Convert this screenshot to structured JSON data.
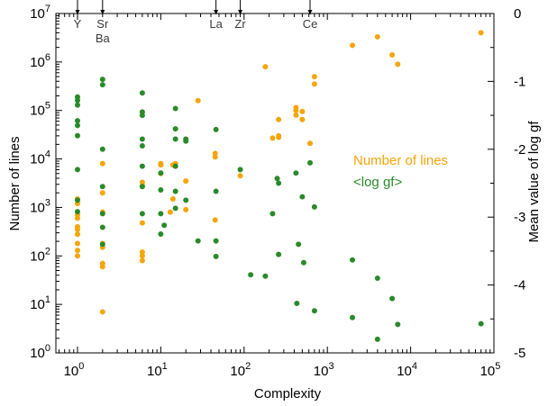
{
  "chart_data": {
    "type": "scatter",
    "xlabel": "Complexity",
    "ylabel_left": "Number of lines",
    "ylabel_right": "Mean value of log gf",
    "x_scale": "log",
    "y_left_scale": "log",
    "xlim": [
      0.55,
      100000
    ],
    "ylim_left": [
      1,
      10000000
    ],
    "ylim_right": [
      -5,
      0
    ],
    "x_ticks": [
      {
        "v": 1,
        "b": "10",
        "e": "0"
      },
      {
        "v": 10,
        "b": "10",
        "e": "1"
      },
      {
        "v": 100,
        "b": "10",
        "e": "2"
      },
      {
        "v": 1000,
        "b": "10",
        "e": "3"
      },
      {
        "v": 10000,
        "b": "10",
        "e": "4"
      },
      {
        "v": 100000,
        "b": "10",
        "e": "5"
      }
    ],
    "y_left_ticks": [
      {
        "v": 1,
        "b": "10",
        "e": "0"
      },
      {
        "v": 10,
        "b": "10",
        "e": "1"
      },
      {
        "v": 100,
        "b": "10",
        "e": "2"
      },
      {
        "v": 1000,
        "b": "10",
        "e": "3"
      },
      {
        "v": 10000,
        "b": "10",
        "e": "4"
      },
      {
        "v": 100000,
        "b": "10",
        "e": "5"
      },
      {
        "v": 1000000,
        "b": "10",
        "e": "6"
      },
      {
        "v": 10000000,
        "b": "10",
        "e": "7"
      }
    ],
    "y_right_ticks": [
      "0",
      "-1",
      "-2",
      "-3",
      "-4",
      "-5"
    ],
    "element_markers": [
      {
        "label": "Y",
        "x": 1
      },
      {
        "label": "Sr",
        "x": 2
      },
      {
        "label": "Ba",
        "x": 2
      },
      {
        "label": "La",
        "x": 46
      },
      {
        "label": "Zr",
        "x": 90
      },
      {
        "label": "Ce",
        "x": 620
      }
    ],
    "legend_position": "right",
    "series": [
      {
        "name": "Number of lines",
        "color": "#f5a50a",
        "axis": "left",
        "points": [
          [
            1,
            100
          ],
          [
            1,
            130
          ],
          [
            1,
            180
          ],
          [
            1,
            280
          ],
          [
            1,
            350
          ],
          [
            1,
            400
          ],
          [
            1,
            600
          ],
          [
            1,
            700
          ],
          [
            1,
            1200
          ],
          [
            1,
            1500
          ],
          [
            2,
            7
          ],
          [
            2,
            60
          ],
          [
            2,
            70
          ],
          [
            2,
            150
          ],
          [
            2,
            180
          ],
          [
            2,
            800
          ],
          [
            2,
            2000
          ],
          [
            2,
            8000
          ],
          [
            6,
            80
          ],
          [
            6,
            100
          ],
          [
            6,
            120
          ],
          [
            6,
            480
          ],
          [
            6,
            2800
          ],
          [
            6,
            3300
          ],
          [
            10,
            5000
          ],
          [
            10,
            7500
          ],
          [
            10,
            8000
          ],
          [
            13,
            800
          ],
          [
            14,
            1500
          ],
          [
            14,
            7500
          ],
          [
            15,
            8000
          ],
          [
            20,
            900
          ],
          [
            20,
            3500
          ],
          [
            28,
            160000
          ],
          [
            45,
            550
          ],
          [
            45,
            11000
          ],
          [
            45,
            13000
          ],
          [
            90,
            4500
          ],
          [
            180,
            800000
          ],
          [
            220,
            27000
          ],
          [
            260,
            28000
          ],
          [
            260,
            30000
          ],
          [
            260,
            65000
          ],
          [
            420,
            80000
          ],
          [
            420,
            100000
          ],
          [
            420,
            115000
          ],
          [
            500,
            95000
          ],
          [
            500,
            65000
          ],
          [
            620,
            21000
          ],
          [
            700,
            350000
          ],
          [
            700,
            500000
          ],
          [
            2000,
            2200000
          ],
          [
            4000,
            3300000
          ],
          [
            6000,
            1400000
          ],
          [
            7000,
            900000
          ],
          [
            70000,
            4000000
          ]
        ]
      },
      {
        "name": "<log gf>",
        "color": "#2a8a2a",
        "axis": "right",
        "points": [
          [
            1,
            -1.23
          ],
          [
            1,
            -1.28
          ],
          [
            1,
            -1.35
          ],
          [
            1,
            -1.58
          ],
          [
            1,
            -1.65
          ],
          [
            1,
            -1.8
          ],
          [
            1,
            -2.3
          ],
          [
            1,
            -2.75
          ],
          [
            1,
            -2.92
          ],
          [
            2,
            -0.97
          ],
          [
            2,
            -1.05
          ],
          [
            2,
            -2.0
          ],
          [
            2,
            -2.55
          ],
          [
            2,
            -2.95
          ],
          [
            2,
            -3.15
          ],
          [
            2,
            -3.4
          ],
          [
            6,
            -1.17
          ],
          [
            6,
            -1.45
          ],
          [
            6,
            -1.5
          ],
          [
            6,
            -1.85
          ],
          [
            6,
            -1.95
          ],
          [
            6,
            -2.25
          ],
          [
            6,
            -2.55
          ],
          [
            6,
            -2.95
          ],
          [
            10,
            -2.35
          ],
          [
            10,
            -2.6
          ],
          [
            10,
            -2.95
          ],
          [
            10,
            -3.25
          ],
          [
            11,
            -3.12
          ],
          [
            15,
            -1.4
          ],
          [
            15,
            -1.7
          ],
          [
            15,
            -1.85
          ],
          [
            15,
            -2.25
          ],
          [
            15,
            -2.62
          ],
          [
            15,
            -2.87
          ],
          [
            20,
            -1.85
          ],
          [
            20,
            -1.88
          ],
          [
            20,
            -2.75
          ],
          [
            28,
            -3.35
          ],
          [
            46,
            -1.71
          ],
          [
            46,
            -2.62
          ],
          [
            46,
            -3.35
          ],
          [
            46,
            -3.58
          ],
          [
            90,
            -2.3
          ],
          [
            120,
            -3.85
          ],
          [
            180,
            -3.87
          ],
          [
            220,
            -2.95
          ],
          [
            250,
            -2.43
          ],
          [
            260,
            -2.5
          ],
          [
            260,
            -3.55
          ],
          [
            420,
            -2.35
          ],
          [
            430,
            -4.27
          ],
          [
            450,
            -3.4
          ],
          [
            500,
            -2.7
          ],
          [
            520,
            -3.67
          ],
          [
            620,
            -2.2
          ],
          [
            700,
            -2.85
          ],
          [
            700,
            -4.38
          ],
          [
            2000,
            -3.63
          ],
          [
            2000,
            -4.48
          ],
          [
            4000,
            -3.9
          ],
          [
            4000,
            -4.8
          ],
          [
            6000,
            -4.2
          ],
          [
            7000,
            -4.58
          ],
          [
            70000,
            -4.57
          ]
        ]
      }
    ]
  }
}
